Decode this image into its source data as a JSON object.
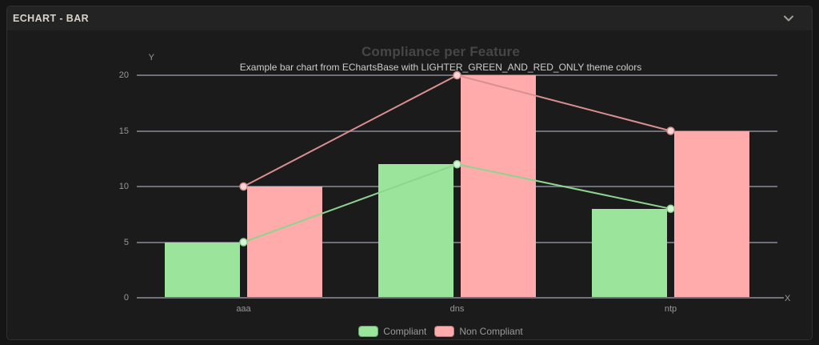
{
  "header": {
    "title": "ECHART - BAR"
  },
  "icons": {
    "header_collapse": "chevron-down"
  },
  "colors": {
    "outer_background": "#151515",
    "panel_background": "#1c1c1c",
    "header_background": "#232323",
    "grid_line": "#6e7079",
    "axis_label": "#989898",
    "title_text": "#464646",
    "subtitle_text": "#cdcdcd"
  },
  "chart_data": {
    "type": "bar",
    "title": "Compliance per Feature",
    "subtitle": "Example bar chart from EChartsBase with LIGHTER_GREEN_AND_RED_ONLY theme colors",
    "xlabel": "X",
    "ylabel": "Y",
    "categories": [
      "aaa",
      "dns",
      "ntp"
    ],
    "series": [
      {
        "name": "Compliant",
        "values": [
          5,
          12,
          8
        ],
        "bar_color": "#9be49c",
        "line_color": "#8fd391",
        "dot_fill": "#d9f3d9"
      },
      {
        "name": "Non Compliant",
        "values": [
          10,
          20,
          15
        ],
        "bar_color": "#ffabab",
        "line_color": "#d98f8f",
        "dot_fill": "#f8d7d7"
      }
    ],
    "ylim": [
      0,
      20
    ],
    "yticks": [
      0,
      5,
      10,
      15,
      20
    ],
    "grid": true,
    "overlay": "line-with-symbols",
    "legend_position": "bottom",
    "legend": [
      "Compliant",
      "Non Compliant"
    ]
  }
}
